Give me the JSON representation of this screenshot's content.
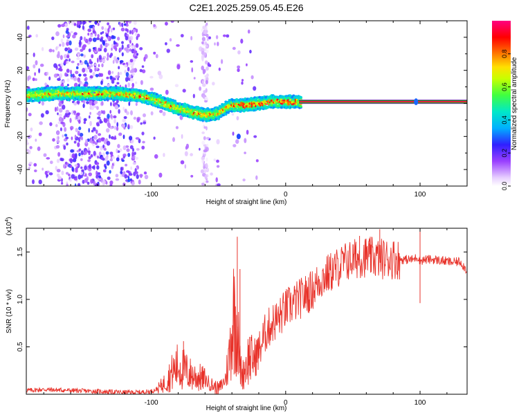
{
  "title": "C2E1.2025.259.05.45.E26",
  "colors": {
    "axis": "#000000",
    "snr_line": "#e8322a",
    "spectrogram_bg": "#ffffff"
  },
  "chart_data": [
    {
      "type": "heatmap",
      "panel": "top",
      "title": "C2E1.2025.259.05.45.E26",
      "xlabel": "Height of straight line (km)",
      "ylabel": "Frequency (Hz)",
      "xlim": [
        -193,
        135
      ],
      "ylim": [
        -50,
        50
      ],
      "x_ticks": [
        -100,
        0,
        100
      ],
      "x_tick_labels": [
        "-100",
        "0",
        "100"
      ],
      "y_ticks": [
        -40,
        -20,
        0,
        20,
        40
      ],
      "y_tick_labels": [
        "-40",
        "-20",
        "0",
        "20",
        "40"
      ],
      "colorbar": {
        "label": "Normalized spectral amplitude",
        "range": [
          0,
          1
        ],
        "ticks": [
          0.0,
          0.2,
          0.4,
          0.6,
          0.8
        ],
        "tick_labels": [
          "0.0",
          "0.2",
          "0.4",
          "0.6",
          "0.8"
        ],
        "colormap": "rainbow (white-purple-blue-cyan-green-yellow-red-magenta)"
      },
      "ridge": {
        "description": "dominant frequency track vs height",
        "x": [
          -193,
          -170,
          -150,
          -130,
          -110,
          -100,
          -90,
          -80,
          -70,
          -60,
          -50,
          -45,
          -40,
          -30,
          -20,
          -10,
          0,
          10,
          135
        ],
        "frequency_hz": [
          5,
          6,
          6,
          6,
          5,
          3,
          0,
          -3,
          -5,
          -7,
          -6,
          -3,
          -1,
          -1,
          0,
          1,
          1,
          1,
          1
        ]
      },
      "carrier_line": {
        "x_start": 10,
        "x_end": 135,
        "frequency_hz": 1
      }
    },
    {
      "type": "line",
      "panel": "bottom",
      "xlabel": "Height of straight line (km)",
      "ylabel": "SNR (10 * v/v)",
      "y_multiplier_label": "(x10",
      "y_multiplier_exp": "4",
      "xlim": [
        -193,
        135
      ],
      "ylim": [
        0,
        17500
      ],
      "x_ticks": [
        -100,
        0,
        100
      ],
      "x_tick_labels": [
        "-100",
        "0",
        "100"
      ],
      "y_ticks": [
        5000,
        10000,
        15000
      ],
      "y_tick_labels": [
        "0.5",
        "1.0",
        "1.5"
      ],
      "series": [
        {
          "name": "SNR",
          "x": [
            -193,
            -180,
            -170,
            -160,
            -150,
            -140,
            -130,
            -120,
            -110,
            -100,
            -95,
            -90,
            -85,
            -80,
            -75,
            -70,
            -65,
            -60,
            -55,
            -50,
            -45,
            -42,
            -40,
            -38,
            -36,
            -34,
            -32,
            -30,
            -27,
            -25,
            -20,
            -15,
            -10,
            -5,
            0,
            5,
            10,
            15,
            20,
            25,
            30,
            35,
            40,
            45,
            50,
            55,
            60,
            65,
            70,
            75,
            80,
            85,
            90,
            95,
            98,
            100,
            105,
            110,
            115,
            120,
            125,
            130,
            135
          ],
          "y": [
            400,
            500,
            450,
            400,
            350,
            300,
            250,
            200,
            200,
            300,
            600,
            1200,
            2200,
            3000,
            2500,
            2000,
            1800,
            1500,
            1000,
            500,
            1500,
            4000,
            7000,
            9000,
            7000,
            3000,
            2000,
            3000,
            4000,
            3500,
            4500,
            6500,
            7500,
            8000,
            9000,
            9500,
            10000,
            10500,
            11000,
            12000,
            12500,
            13000,
            13500,
            14000,
            14200,
            14400,
            14500,
            14400,
            14300,
            14300,
            14300,
            14200,
            14200,
            14200,
            14500,
            14100,
            14200,
            14200,
            14100,
            14000,
            13900,
            14000,
            13000
          ],
          "spikes": [
            {
              "x": -76,
              "y": 5600
            },
            {
              "x": -36,
              "y": 16600
            },
            {
              "x": -34,
              "y": 13200
            },
            {
              "x": 55,
              "y": 16700
            },
            {
              "x": 62,
              "y": 15900
            },
            {
              "x": 70,
              "y": 17400
            },
            {
              "x": 100,
              "y": 17500
            },
            {
              "x": 100,
              "y": 9600
            }
          ]
        }
      ]
    }
  ]
}
